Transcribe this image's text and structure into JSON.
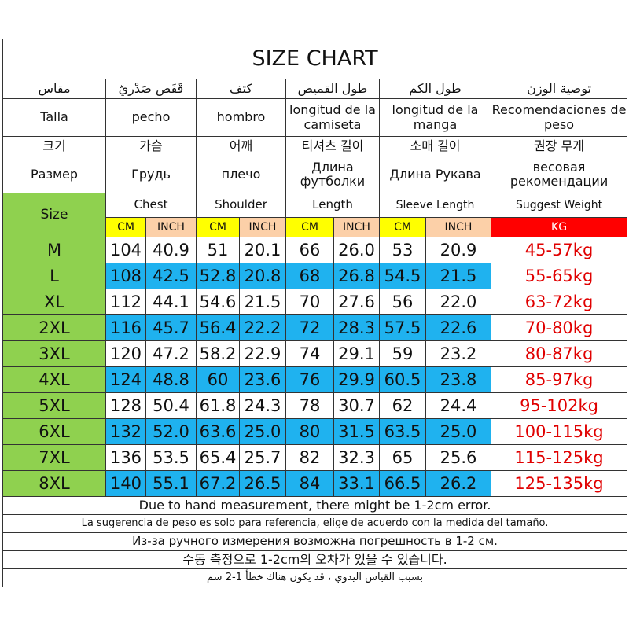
{
  "title": "SIZE CHART",
  "labels": {
    "arabic": [
      "مقاس",
      "قَفَص صَدْريّ",
      "كتف",
      "طول القميص",
      "طول الكم",
      "توصية الوزن"
    ],
    "spanish": [
      "Talla",
      "pecho",
      "hombro",
      "longitud de la camiseta",
      "longitud de la manga",
      "Recomendaciones de peso"
    ],
    "korean": [
      "크기",
      "가슴",
      "어깨",
      "티셔츠 길이",
      "소매 길이",
      "권장 무게"
    ],
    "russian": [
      "Размер",
      "Грудь",
      "плечо",
      "Длина футболки",
      "Длина Рукава",
      "весовая рекомендации"
    ]
  },
  "english": {
    "size": "Size",
    "chest": "Chest",
    "shoulder": "Shoulder",
    "length": "Length",
    "sleeve": "Sleeve Length",
    "weight": "Suggest Weight"
  },
  "units": [
    "CM",
    "INCH",
    "CM",
    "INCH",
    "CM",
    "INCH",
    "CM",
    "INCH",
    "KG"
  ],
  "colors": {
    "size_col": "#8fd14f",
    "row_alt": "#1fb2ef",
    "cm": "#ffff00",
    "inch": "#fcd0a8",
    "kg": "#ff0000",
    "weight_text": "#e00000"
  },
  "rows": [
    {
      "size": "M",
      "values": [
        "104",
        "40.9",
        "51",
        "20.1",
        "66",
        "26.0",
        "53",
        "20.9"
      ],
      "weight": "45-57kg"
    },
    {
      "size": "L",
      "values": [
        "108",
        "42.5",
        "52.8",
        "20.8",
        "68",
        "26.8",
        "54.5",
        "21.5"
      ],
      "weight": "55-65kg"
    },
    {
      "size": "XL",
      "values": [
        "112",
        "44.1",
        "54.6",
        "21.5",
        "70",
        "27.6",
        "56",
        "22.0"
      ],
      "weight": "63-72kg"
    },
    {
      "size": "2XL",
      "values": [
        "116",
        "45.7",
        "56.4",
        "22.2",
        "72",
        "28.3",
        "57.5",
        "22.6"
      ],
      "weight": "70-80kg"
    },
    {
      "size": "3XL",
      "values": [
        "120",
        "47.2",
        "58.2",
        "22.9",
        "74",
        "29.1",
        "59",
        "23.2"
      ],
      "weight": "80-87kg"
    },
    {
      "size": "4XL",
      "values": [
        "124",
        "48.8",
        "60",
        "23.6",
        "76",
        "29.9",
        "60.5",
        "23.8"
      ],
      "weight": "85-97kg"
    },
    {
      "size": "5XL",
      "values": [
        "128",
        "50.4",
        "61.8",
        "24.3",
        "78",
        "30.7",
        "62",
        "24.4"
      ],
      "weight": "95-102kg"
    },
    {
      "size": "6XL",
      "values": [
        "132",
        "52.0",
        "63.6",
        "25.0",
        "80",
        "31.5",
        "63.5",
        "25.0"
      ],
      "weight": "100-115kg"
    },
    {
      "size": "7XL",
      "values": [
        "136",
        "53.5",
        "65.4",
        "25.7",
        "82",
        "32.3",
        "65",
        "25.6"
      ],
      "weight": "115-125kg"
    },
    {
      "size": "8XL",
      "values": [
        "140",
        "55.1",
        "67.2",
        "26.5",
        "84",
        "33.1",
        "66.5",
        "26.2"
      ],
      "weight": "125-135kg"
    }
  ],
  "notes": [
    "Due to hand measurement, there might be 1-2cm error.",
    "La sugerencia de peso es solo para referencia, elige de acuerdo con la medida del tamaño.",
    "Из-за ручного измерения возможна погрешность в 1-2 см.",
    "수동 측정으로 1-2cm의 오차가 있을 수 있습니다.",
    "بسبب القياس اليدوي ، قد يكون هناك خطأ 1-2 سم"
  ]
}
